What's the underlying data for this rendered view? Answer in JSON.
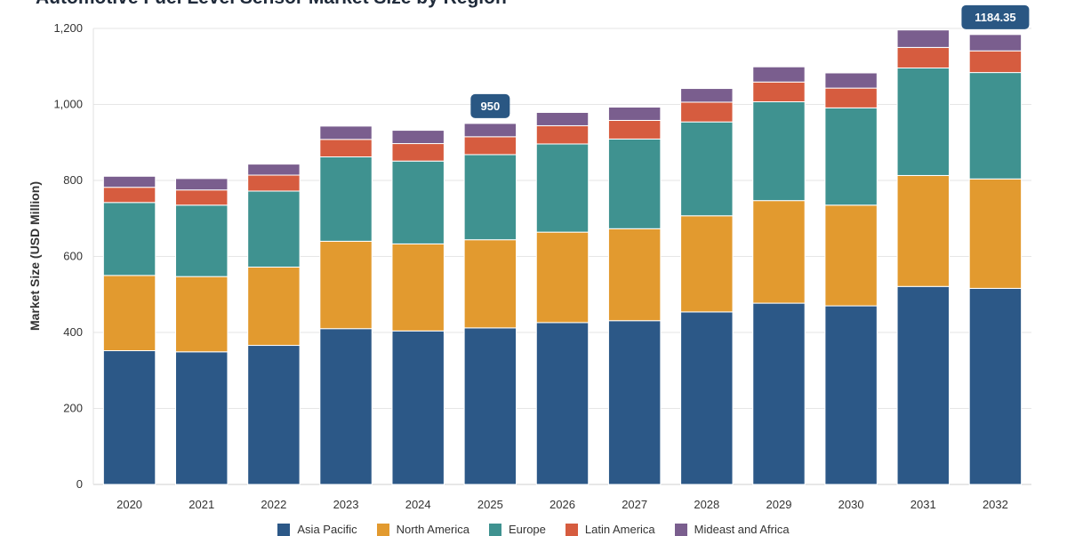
{
  "chart_data": {
    "type": "bar",
    "stacked": true,
    "title": "Automotive Fuel Level Sensor Market Size by Region",
    "ylabel": "Market Size (USD Million)",
    "xlabel": "",
    "ylim": [
      0,
      1200
    ],
    "yticks": [
      "0",
      "200",
      "400",
      "600",
      "800",
      "1,000",
      "1,200"
    ],
    "grid": true,
    "legend_position": "bottom",
    "categories": [
      "2020",
      "2021",
      "2022",
      "2023",
      "2024",
      "2025",
      "2026",
      "2027",
      "2028",
      "2029",
      "2030",
      "2031",
      "2032"
    ],
    "series": [
      {
        "name": "Asia Pacific",
        "color": "#2c5887",
        "values": [
          352,
          349,
          366,
          410,
          404,
          412,
          426,
          431,
          454,
          477,
          470,
          521,
          516
        ]
      },
      {
        "name": "North America",
        "color": "#e29a2f",
        "values": [
          198,
          198,
          206,
          230,
          229,
          232,
          238,
          242,
          253,
          270,
          265,
          292,
          288
        ]
      },
      {
        "name": "Europe",
        "color": "#3f9290",
        "values": [
          192,
          188,
          200,
          222,
          218,
          224,
          232,
          236,
          247,
          260,
          256,
          283,
          280
        ]
      },
      {
        "name": "Latin America",
        "color": "#d65c3f",
        "values": [
          40,
          40,
          42,
          46,
          46,
          47,
          48,
          49,
          52,
          52,
          52,
          54,
          57
        ]
      },
      {
        "name": "Mideast and Africa",
        "color": "#7a5e8e",
        "values": [
          29,
          30,
          29,
          35,
          35,
          35,
          35,
          35,
          36,
          40,
          40,
          46,
          43
        ]
      }
    ],
    "annotations": [
      {
        "category": "2025",
        "text": "950"
      },
      {
        "category": "2032",
        "text": "1184.35"
      }
    ]
  }
}
